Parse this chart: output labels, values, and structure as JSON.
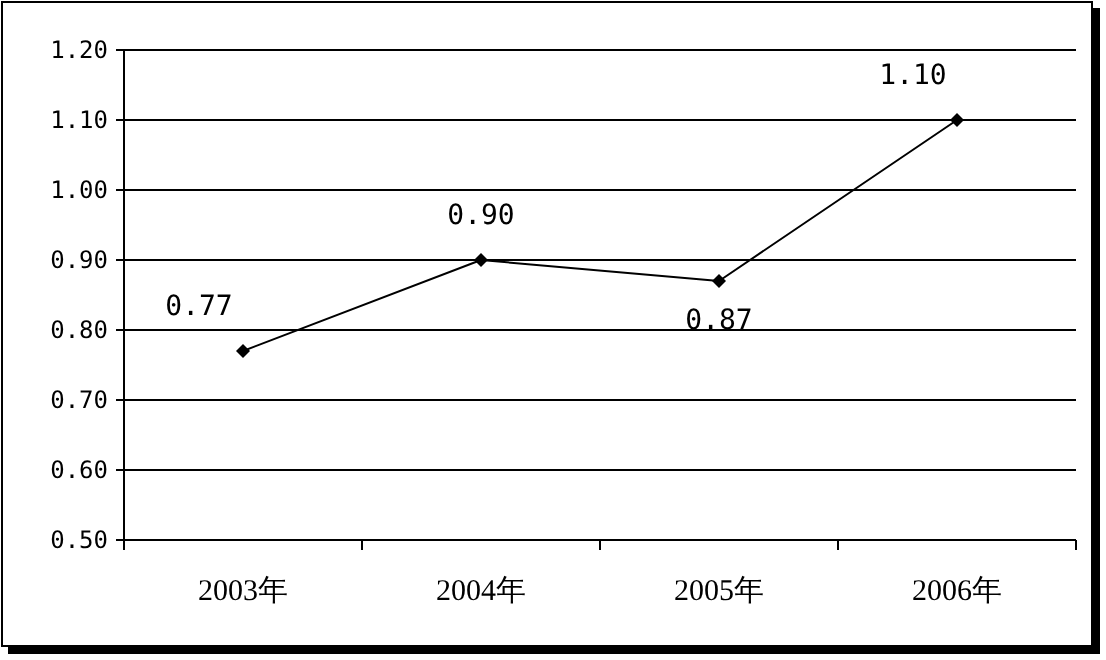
{
  "chart_data": {
    "type": "line",
    "categories": [
      "2003年",
      "2004年",
      "2005年",
      "2006年"
    ],
    "series": [
      {
        "color": "#000000",
        "values": [
          0.77,
          0.9,
          0.87,
          1.1
        ],
        "value_labels": [
          "0.77",
          "0.90",
          "0.87",
          "1.10"
        ]
      }
    ],
    "ylim": [
      0.5,
      1.2
    ],
    "yticks": [
      {
        "value": 0.5,
        "label": "0.50"
      },
      {
        "value": 0.6,
        "label": "0.60"
      },
      {
        "value": 0.7,
        "label": "0.70"
      },
      {
        "value": 0.8,
        "label": "0.80"
      },
      {
        "value": 0.9,
        "label": "0.90"
      },
      {
        "value": 1.0,
        "label": "1.00"
      },
      {
        "value": 1.1,
        "label": "1.10"
      },
      {
        "value": 1.2,
        "label": "1.20"
      }
    ],
    "grid": "y",
    "marker": "diamond",
    "line_style": "solid"
  }
}
